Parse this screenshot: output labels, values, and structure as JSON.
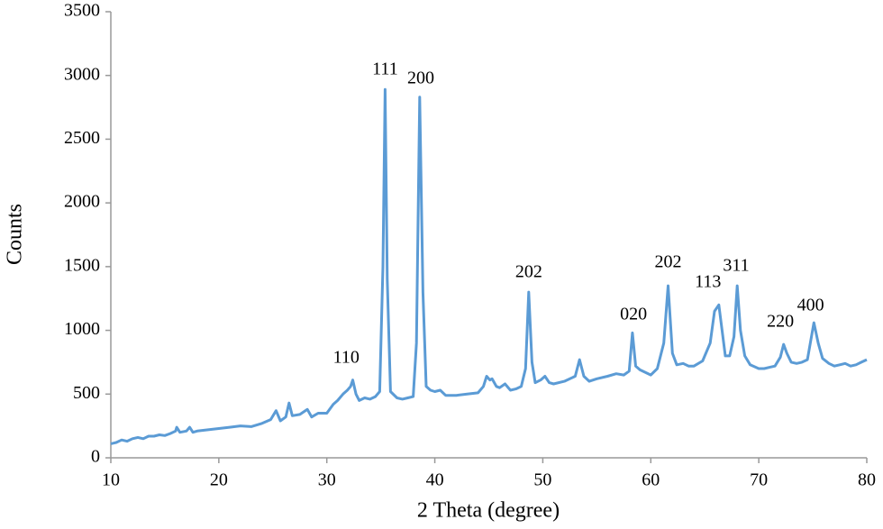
{
  "chart_data": {
    "type": "line",
    "xlabel": "2 Theta (degree)",
    "ylabel": "Counts",
    "xlim": [
      10,
      80
    ],
    "xticks": [
      10,
      20,
      30,
      40,
      50,
      60,
      70,
      80
    ],
    "ylim": [
      0,
      3500
    ],
    "yticks": [
      0,
      500,
      1000,
      1500,
      2000,
      2500,
      3000,
      3500
    ],
    "grid": false,
    "series": [
      {
        "color": "#5b9bd5",
        "x": [
          10,
          10.5,
          11,
          11.5,
          12,
          12.5,
          13,
          13.5,
          14,
          14.5,
          15,
          15.5,
          16,
          16.1,
          16.4,
          17,
          17.3,
          17.6,
          18,
          19,
          20,
          21,
          22,
          23,
          24,
          24.8,
          25.3,
          25.7,
          26.2,
          26.5,
          26.8,
          27.5,
          28.2,
          28.6,
          29.2,
          30,
          30.6,
          31,
          31.5,
          31.9,
          32.2,
          32.4,
          32.7,
          33,
          33.5,
          34,
          34.5,
          34.9,
          35.2,
          35.4,
          35.6,
          35.9,
          36.5,
          37,
          37.5,
          38,
          38.3,
          38.6,
          38.9,
          39.2,
          39.6,
          40,
          40.5,
          41,
          42,
          43,
          44,
          44.5,
          44.8,
          45.1,
          45.3,
          45.7,
          46,
          46.5,
          47,
          47.5,
          48,
          48.4,
          48.7,
          49,
          49.3,
          49.8,
          50.2,
          50.6,
          51,
          52,
          53,
          53.4,
          53.8,
          54.3,
          55,
          56,
          56.8,
          57.5,
          58,
          58.3,
          58.6,
          59,
          60,
          60.6,
          61.2,
          61.6,
          62,
          62.4,
          63,
          63.5,
          64,
          64.8,
          65.5,
          65.9,
          66.3,
          66.6,
          66.9,
          67.3,
          67.7,
          68,
          68.3,
          68.7,
          69.2,
          70,
          70.5,
          71,
          71.5,
          72,
          72.3,
          72.6,
          73,
          73.5,
          74,
          74.5,
          75.1,
          75.5,
          75.9,
          76.5,
          77,
          77.5,
          78,
          78.5,
          79,
          79.5,
          80
        ],
        "values": [
          110,
          120,
          140,
          130,
          150,
          160,
          150,
          170,
          170,
          180,
          175,
          190,
          210,
          240,
          200,
          210,
          240,
          200,
          210,
          220,
          230,
          240,
          250,
          245,
          270,
          300,
          370,
          290,
          320,
          430,
          330,
          340,
          380,
          320,
          350,
          350,
          420,
          450,
          500,
          530,
          560,
          610,
          500,
          450,
          470,
          460,
          480,
          520,
          1500,
          2890,
          1400,
          520,
          470,
          460,
          470,
          480,
          900,
          2830,
          1300,
          560,
          530,
          520,
          530,
          490,
          490,
          500,
          510,
          560,
          640,
          610,
          620,
          560,
          550,
          580,
          530,
          540,
          560,
          700,
          1300,
          750,
          590,
          610,
          640,
          590,
          580,
          600,
          640,
          770,
          640,
          600,
          620,
          640,
          660,
          650,
          680,
          980,
          720,
          690,
          650,
          700,
          900,
          1350,
          820,
          730,
          740,
          720,
          720,
          760,
          900,
          1150,
          1200,
          1000,
          800,
          800,
          950,
          1350,
          1000,
          800,
          730,
          700,
          700,
          710,
          720,
          790,
          890,
          820,
          750,
          740,
          750,
          770,
          1060,
          900,
          780,
          740,
          720,
          730,
          740,
          720,
          730,
          750,
          770
        ]
      }
    ],
    "annotations": [
      {
        "text": "111",
        "x": 35.4,
        "y": 3040
      },
      {
        "text": "200",
        "x": 38.7,
        "y": 2970
      },
      {
        "text": "110",
        "x": 31.8,
        "y": 778
      },
      {
        "text": "202",
        "x": 48.7,
        "y": 1450
      },
      {
        "text": "020",
        "x": 58.4,
        "y": 1117
      },
      {
        "text": "202",
        "x": 61.6,
        "y": 1527
      },
      {
        "text": "113",
        "x": 65.3,
        "y": 1372
      },
      {
        "text": "311",
        "x": 67.9,
        "y": 1499
      },
      {
        "text": "220",
        "x": 72.0,
        "y": 1061
      },
      {
        "text": "400",
        "x": 74.8,
        "y": 1188
      }
    ]
  }
}
